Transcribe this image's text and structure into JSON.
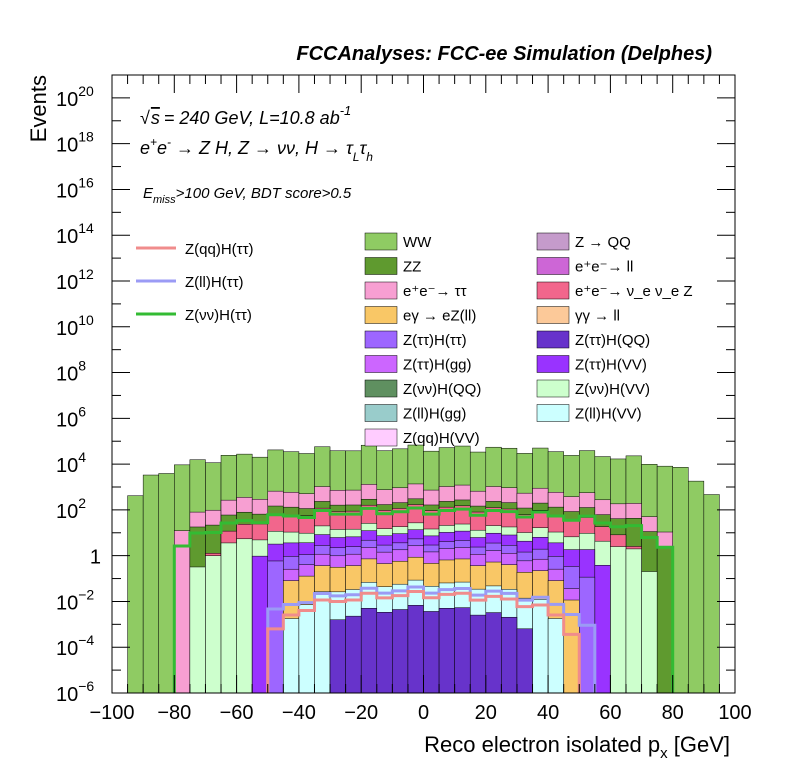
{
  "chart_data": {
    "type": "histogram",
    "title": "FCCAnalyses: FCC-ee Simulation (Delphes)",
    "annotations": {
      "energy": "√s = 240 GeV, L=10.8 ab⁻¹",
      "process": "e⁺e⁻ → Z H, Z → νν, H → τ_L τ_h",
      "cuts": "E_miss>100 GeV, BDT score>0.5"
    },
    "xlabel": "Reco electron isolated p_x [GeV]",
    "ylabel": "Events",
    "xlim": [
      -100,
      100
    ],
    "ylim": [
      1e-06,
      1e+21
    ],
    "yscale": "log",
    "x_ticks": [
      -100,
      -80,
      -60,
      -40,
      -20,
      0,
      20,
      40,
      60,
      80,
      100
    ],
    "x_tick_labels": [
      "−100",
      "−80",
      "−60",
      "−40",
      "−20",
      "0",
      "20",
      "40",
      "60",
      "80",
      "100"
    ],
    "y_ticks": [
      {
        "exp": -6,
        "label": "10",
        "sup": "−6"
      },
      {
        "exp": -4,
        "label": "10",
        "sup": "−4"
      },
      {
        "exp": -2,
        "label": "10",
        "sup": "−2"
      },
      {
        "exp": 0,
        "label": "1",
        "sup": ""
      },
      {
        "exp": 2,
        "label": "10",
        "sup": "2"
      },
      {
        "exp": 4,
        "label": "10",
        "sup": "4"
      },
      {
        "exp": 6,
        "label": "10",
        "sup": "6"
      },
      {
        "exp": 8,
        "label": "10",
        "sup": "8"
      },
      {
        "exp": 10,
        "label": "10",
        "sup": "10"
      },
      {
        "exp": 12,
        "label": "10",
        "sup": "12"
      },
      {
        "exp": 14,
        "label": "10",
        "sup": "14"
      },
      {
        "exp": 16,
        "label": "10",
        "sup": "16"
      },
      {
        "exp": 18,
        "label": "10",
        "sup": "18"
      },
      {
        "exp": 20,
        "label": "10",
        "sup": "20"
      }
    ],
    "legend_signals": [
      {
        "label": "Z(qq)H(ττ)",
        "color": "#f08c8c"
      },
      {
        "label": "Z(ll)H(ττ)",
        "color": "#9b9bf5"
      },
      {
        "label": "Z(νν)H(ττ)",
        "color": "#33bb33"
      }
    ],
    "legend_backgrounds": [
      {
        "label": "WW",
        "color": "#8fcb63"
      },
      {
        "label": "Z → QQ",
        "color": "#c59bcb"
      },
      {
        "label": "ZZ",
        "color": "#5f9a2f"
      },
      {
        "label": "e⁺e⁻→ ll",
        "color": "#cd66d6"
      },
      {
        "label": "e⁺e⁻→ ττ",
        "color": "#f79fd2"
      },
      {
        "label": "e⁺e⁻→ ν_e ν_e Z",
        "color": "#f2668c"
      },
      {
        "label": "eγ → eZ(ll)",
        "color": "#f9c766"
      },
      {
        "label": "γγ → ll",
        "color": "#fcc999"
      },
      {
        "label": "Z(ττ)H(ττ)",
        "color": "#9d66ff"
      },
      {
        "label": "Z(ττ)H(QQ)",
        "color": "#6733cb"
      },
      {
        "label": "Z(ττ)H(gg)",
        "color": "#cc66ff"
      },
      {
        "label": "Z(ττ)H(VV)",
        "color": "#9933ff"
      },
      {
        "label": "Z(νν)H(QQ)",
        "color": "#5f9060"
      },
      {
        "label": "Z(νν)H(VV)",
        "color": "#cdffcd"
      },
      {
        "label": "Z(ll)H(gg)",
        "color": "#99cccb"
      },
      {
        "label": "Z(ll)H(VV)",
        "color": "#ccffff"
      },
      {
        "label": "Z(qq)H(VV)",
        "color": "#ffccff"
      }
    ],
    "bin_width": 5,
    "stack_layers": [
      {
        "name": "WW",
        "color": "#8fcb63",
        "x_range": [
          -95,
          95
        ],
        "peak_log": 4.7,
        "width": 95
      },
      {
        "name": "e⁺e⁻→ ττ",
        "color": "#f79fd2",
        "x_range": [
          -80,
          80
        ],
        "peak_log": 3.0,
        "width": 80
      },
      {
        "name": "ZZ",
        "color": "#5f9a2f",
        "x_range": [
          -75,
          80
        ],
        "peak_log": 2.35,
        "width": 80
      },
      {
        "name": "e⁺e⁻→ ν_e ν_e Z",
        "color": "#f2668c",
        "x_range": [
          -70,
          70
        ],
        "peak_log": 2.1,
        "width": 70
      },
      {
        "name": "Z(νν)H(VV)",
        "color": "#cdffcd",
        "x_range": [
          -75,
          75
        ],
        "peak_log": 1.3,
        "width": 75
      },
      {
        "name": "Z(ττ)H(VV)",
        "color": "#9933ff",
        "x_range": [
          -55,
          60
        ],
        "peak_log": 1.0,
        "width": 62
      },
      {
        "name": "Z(ττ)H(ττ)",
        "color": "#9d66ff",
        "x_range": [
          -50,
          55
        ],
        "peak_log": 0.6,
        "width": 55
      },
      {
        "name": "Z(ττ)H(gg)",
        "color": "#cc66ff",
        "x_range": [
          -45,
          50
        ],
        "peak_log": 0.3,
        "width": 50
      },
      {
        "name": "eγ → eZ(ll)",
        "color": "#f9c766",
        "x_range": [
          -45,
          50
        ],
        "peak_log": -0.2,
        "width": 50
      },
      {
        "name": "Z(ll)H(VV)",
        "color": "#ccffff",
        "x_range": [
          -45,
          45
        ],
        "peak_log": -1.2,
        "width": 45
      },
      {
        "name": "Z(ττ)H(QQ)",
        "color": "#6733cb",
        "x_range": [
          -30,
          35
        ],
        "peak_log": -2.3,
        "width": 40
      }
    ],
    "signal_lines": [
      {
        "name": "Z(νν)H(ττ)",
        "color": "#33bb33",
        "x_range": [
          -80,
          80
        ],
        "peak_log": 1.95,
        "width": 82
      },
      {
        "name": "Z(ll)H(ττ)",
        "color": "#9b9bf5",
        "x_range": [
          -50,
          55
        ],
        "peak_log": -1.5,
        "width": 55
      },
      {
        "name": "Z(qq)H(ττ)",
        "color": "#f08c8c",
        "x_range": [
          -50,
          50
        ],
        "peak_log": -1.7,
        "width": 50
      }
    ]
  }
}
